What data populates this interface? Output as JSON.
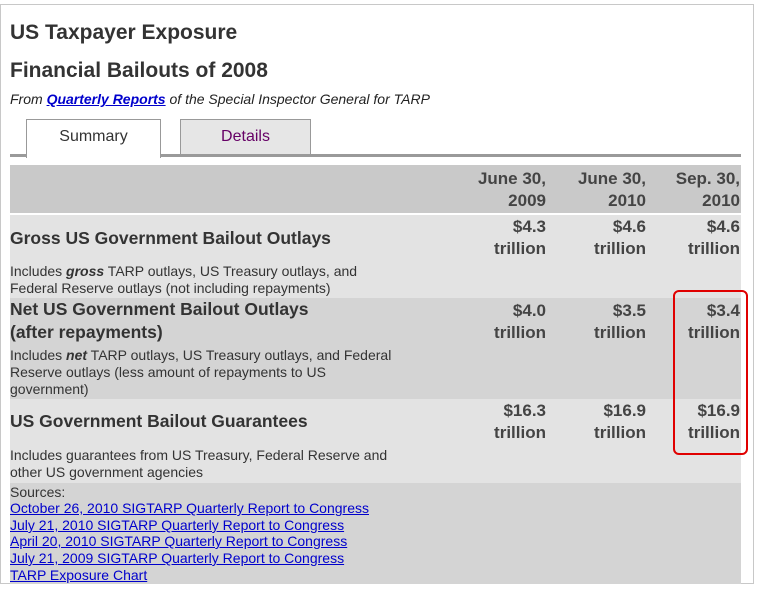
{
  "header": {
    "title": "US Taxpayer Exposure",
    "subtitle": "Financial Bailouts of 2008",
    "source_prefix": "From ",
    "source_link": "Quarterly Reports",
    "source_suffix": " of the Special Inspector General for TARP"
  },
  "tabs": [
    {
      "label": "Summary",
      "active": true
    },
    {
      "label": "Details",
      "active": false
    }
  ],
  "table": {
    "columns": [
      {
        "line1": "June 30,",
        "line2": "2009"
      },
      {
        "line1": "June 30,",
        "line2": "2010"
      },
      {
        "line1": "Sep. 30,",
        "line2": "2010"
      }
    ],
    "rows": [
      {
        "label_line1": "Gross US Government Bailout Outlays",
        "label_line2": "",
        "desc_pre": "Includes ",
        "desc_em": "gross",
        "desc_post": " TARP outlays, US Treasury outlays, and",
        "desc_line2": "Federal Reserve outlays (not including repayments)",
        "desc_line3": "",
        "values": [
          {
            "amount": "$4.3",
            "unit": "trillion"
          },
          {
            "amount": "$4.6",
            "unit": "trillion"
          },
          {
            "amount": "$4.6",
            "unit": "trillion"
          }
        ]
      },
      {
        "label_line1": "Net US Government Bailout Outlays",
        "label_line2": "(after repayments)",
        "desc_pre": "Includes ",
        "desc_em": "net",
        "desc_post": " TARP outlays, US Treasury outlays, and Federal",
        "desc_line2": "Reserve outlays (less amount of repayments to US",
        "desc_line3": "government)",
        "values": [
          {
            "amount": "$4.0",
            "unit": "trillion"
          },
          {
            "amount": "$3.5",
            "unit": "trillion"
          },
          {
            "amount": "$3.4",
            "unit": "trillion"
          }
        ]
      },
      {
        "label_line1": "US Government Bailout Guarantees",
        "label_line2": "",
        "desc_pre": "Includes guarantees from US Treasury, Federal Reserve and",
        "desc_em": "",
        "desc_post": "",
        "desc_line2": "other US government agencies",
        "desc_line3": "",
        "values": [
          {
            "amount": "$16.3",
            "unit": "trillion"
          },
          {
            "amount": "$16.9",
            "unit": "trillion"
          },
          {
            "amount": "$16.9",
            "unit": "trillion"
          }
        ]
      }
    ]
  },
  "sources": {
    "label": "Sources:",
    "links": [
      "October 26, 2010 SIGTARP Quarterly Report to Congress",
      "July 21, 2010 SIGTARP Quarterly Report to Congress",
      "April 20, 2010 SIGTARP Quarterly Report to Congress",
      "July 21, 2009 SIGTARP Quarterly Report to Congress",
      "TARP Exposure Chart"
    ]
  },
  "colors": {
    "highlight": "#e00000",
    "link": "#0000cc",
    "tab_details": "#660066"
  }
}
